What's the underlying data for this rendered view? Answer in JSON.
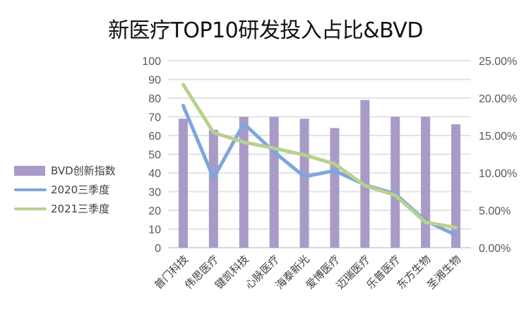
{
  "chart_data": {
    "type": "bar+line",
    "title": "新医疗TOP10研发投入占比&BVD",
    "categories": [
      "普门科技",
      "伟思医疗",
      "键凯科技",
      "心脉医疗",
      "海泰新光",
      "爱博医疗",
      "迈瑞医疗",
      "乐普医疗",
      "东方生物",
      "圣湘生物"
    ],
    "series": [
      {
        "name": "BVD创新指数",
        "type": "bar",
        "axis": "left",
        "color": "#a99bc7",
        "values": [
          69,
          63,
          70,
          70,
          69,
          64,
          79,
          70,
          70,
          66
        ]
      },
      {
        "name": "2020三季度",
        "type": "line",
        "axis": "right",
        "color": "#7ea6dc",
        "values": [
          19.0,
          9.3,
          16.6,
          12.8,
          9.5,
          10.3,
          8.4,
          7.2,
          3.6,
          1.7
        ]
      },
      {
        "name": "2021三季度",
        "type": "line",
        "axis": "right",
        "color": "#b8d18f",
        "values": [
          21.8,
          15.4,
          14.1,
          13.3,
          12.4,
          11.2,
          8.3,
          7.0,
          3.4,
          2.7
        ]
      }
    ],
    "left_axis": {
      "ylim": [
        0,
        100
      ],
      "ticks": [
        "0",
        "10",
        "20",
        "30",
        "40",
        "50",
        "60",
        "70",
        "80",
        "90",
        "100"
      ]
    },
    "right_axis": {
      "ylim": [
        0,
        25
      ],
      "ticks": [
        "0.00%",
        "5.00%",
        "10.00%",
        "15.00%",
        "20.00%",
        "25.00%"
      ]
    },
    "xlabel": "",
    "ylabel": "",
    "grid": true,
    "legend_position": "left"
  },
  "legend": [
    {
      "label": "BVD创新指数",
      "kind": "bar",
      "color": "#a99bc7"
    },
    {
      "label": "2020三季度",
      "kind": "line",
      "color": "#7ea6dc"
    },
    {
      "label": "2021三季度",
      "kind": "line",
      "color": "#b8d18f"
    }
  ]
}
